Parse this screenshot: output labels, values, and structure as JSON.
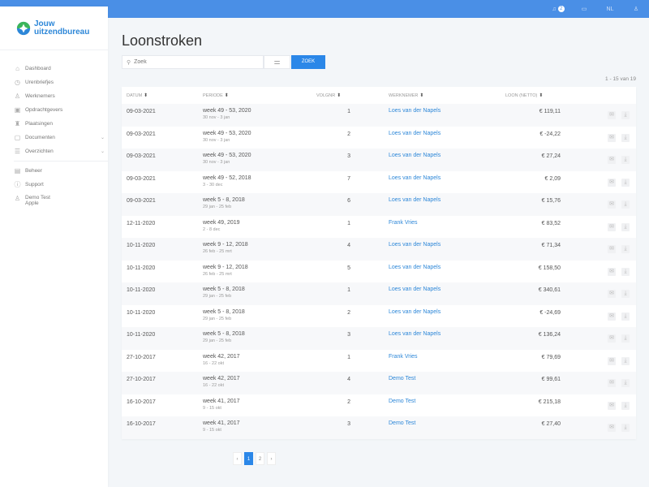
{
  "topbar": {
    "notifications": "2",
    "language": "NL"
  },
  "logo": {
    "line1": "Jouw",
    "line2": "uitzendbureau"
  },
  "sidebar": {
    "items": [
      {
        "label": "Dashboard",
        "icon": "home-icon",
        "glyph": "⌂"
      },
      {
        "label": "Urenbriefjes",
        "icon": "clock-icon",
        "glyph": "◷"
      },
      {
        "label": "Werknemers",
        "icon": "person-icon",
        "glyph": "♙"
      },
      {
        "label": "Opdrachtgevers",
        "icon": "building-icon",
        "glyph": "▣"
      },
      {
        "label": "Plaatsingen",
        "icon": "lighthouse-icon",
        "glyph": "♜"
      },
      {
        "label": "Documenten",
        "icon": "document-icon",
        "glyph": "▢"
      },
      {
        "label": "Overzichten",
        "icon": "list-icon",
        "glyph": "☰"
      },
      {
        "label": "Beheer",
        "icon": "database-icon",
        "glyph": "▤"
      },
      {
        "label": "Support",
        "icon": "help-icon",
        "glyph": "ⓘ"
      }
    ],
    "user": {
      "name": "Demo Test",
      "company": "Apple"
    }
  },
  "page": {
    "title": "Loonstroken",
    "search_placeholder": "Zoek",
    "search_button": "ZOEK",
    "count": "1 - 15 van 19"
  },
  "table": {
    "headers": [
      "DATUM",
      "PERIODE",
      "VOLGNR",
      "WERKNEMER",
      "LOON (NETTO)"
    ],
    "rows": [
      [
        "09-03-2021",
        "week 49 - 53, 2020",
        "30 nov - 3 jan",
        "1",
        "Loes van der Napels",
        "€ 119,11"
      ],
      [
        "09-03-2021",
        "week 49 - 53, 2020",
        "30 nov - 3 jan",
        "2",
        "Loes van der Napels",
        "€ -24,22"
      ],
      [
        "09-03-2021",
        "week 49 - 53, 2020",
        "30 nov - 3 jan",
        "3",
        "Loes van der Napels",
        "€ 27,24"
      ],
      [
        "09-03-2021",
        "week 49 - 52, 2018",
        "3 - 30 dec",
        "7",
        "Loes van der Napels",
        "€ 2,09"
      ],
      [
        "09-03-2021",
        "week 5 - 8, 2018",
        "29 jan - 25 feb",
        "6",
        "Loes van der Napels",
        "€ 15,76"
      ],
      [
        "12-11-2020",
        "week 49, 2019",
        "2 - 8 dec",
        "1",
        "Frank Vries",
        "€ 83,52"
      ],
      [
        "10-11-2020",
        "week 9 - 12, 2018",
        "26 feb - 25 mrt",
        "4",
        "Loes van der Napels",
        "€ 71,34"
      ],
      [
        "10-11-2020",
        "week 9 - 12, 2018",
        "26 feb - 25 mrt",
        "5",
        "Loes van der Napels",
        "€ 158,50"
      ],
      [
        "10-11-2020",
        "week 5 - 8, 2018",
        "29 jan - 25 feb",
        "1",
        "Loes van der Napels",
        "€ 340,61"
      ],
      [
        "10-11-2020",
        "week 5 - 8, 2018",
        "29 jan - 25 feb",
        "2",
        "Loes van der Napels",
        "€ -24,69"
      ],
      [
        "10-11-2020",
        "week 5 - 8, 2018",
        "29 jan - 25 feb",
        "3",
        "Loes van der Napels",
        "€ 136,24"
      ],
      [
        "27-10-2017",
        "week 42, 2017",
        "16 - 22 okt",
        "1",
        "Frank Vries",
        "€ 79,69"
      ],
      [
        "27-10-2017",
        "week 42, 2017",
        "16 - 22 okt",
        "4",
        "Demo Test",
        "€ 99,61"
      ],
      [
        "16-10-2017",
        "week 41, 2017",
        "9 - 15 okt",
        "2",
        "Demo Test",
        "€ 215,18"
      ],
      [
        "16-10-2017",
        "week 41, 2017",
        "9 - 15 okt",
        "3",
        "Demo Test",
        "€ 27,40"
      ]
    ]
  },
  "pagination": {
    "pages": [
      "1",
      "2"
    ],
    "current": "1",
    "prev": "‹",
    "next": "›"
  }
}
